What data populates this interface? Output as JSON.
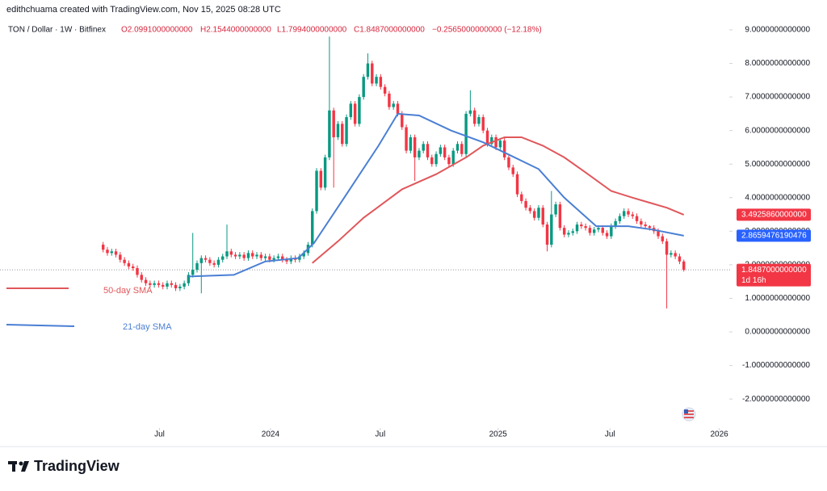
{
  "chart_data": {
    "type": "candlestick",
    "credit": "edithchuama created with TradingView.com, Nov 15, 2025 08:28 UTC",
    "title": "TON / Dollar · 1W · Bitfinex",
    "ohlc_labels": [
      "O2.0991000000000",
      "H2.1544000000000",
      "L1.7994000000000",
      "C1.8487000000000",
      "−0.2565000000000 (−12.18%)"
    ],
    "brand": "TradingView",
    "up_color": "#089981",
    "down_color": "#f23645",
    "open": [
      2.6,
      2.45,
      2.35,
      2.4,
      2.3,
      2.15,
      2.05,
      1.95,
      1.9,
      1.7,
      1.55,
      1.45,
      1.4,
      1.45,
      1.4,
      1.35,
      1.45,
      1.4,
      1.3,
      1.35,
      1.45,
      1.7,
      1.85,
      2.05,
      2.2,
      2.15,
      2.05,
      2.0,
      2.15,
      2.25,
      2.4,
      2.3,
      2.25,
      2.3,
      2.2,
      2.35,
      2.25,
      2.3,
      2.2,
      2.25,
      2.15,
      2.2,
      2.25,
      2.15,
      2.1,
      2.2,
      2.15,
      2.25,
      2.35,
      2.6,
      3.6,
      4.8,
      4.3,
      5.2,
      6.6,
      5.8,
      6.2,
      5.6,
      6.4,
      6.8,
      6.2,
      7.0,
      7.6,
      8.0,
      7.4,
      7.6,
      7.3,
      7.1,
      6.7,
      6.8,
      6.5,
      6.1,
      5.4,
      5.8,
      5.2,
      5.4,
      5.6,
      5.2,
      5.0,
      5.3,
      5.5,
      5.2,
      5.0,
      5.4,
      5.6,
      5.3,
      6.5,
      6.6,
      6.2,
      6.4,
      6.0,
      5.6,
      5.8,
      5.5,
      5.7,
      5.2,
      4.9,
      4.7,
      4.1,
      3.9,
      3.7,
      3.6,
      3.4,
      3.7,
      3.2,
      2.6,
      3.5,
      3.8,
      3.1,
      2.9,
      2.95,
      3.0,
      3.2,
      3.15,
      3.1,
      2.95,
      3.05,
      3.1,
      2.95,
      2.85,
      3.15,
      3.3,
      3.45,
      3.6,
      3.5,
      3.45,
      3.3,
      3.2,
      3.15,
      3.1,
      3.0,
      2.85,
      2.7,
      2.3,
      2.35,
      2.25,
      2.0991
    ],
    "high": [
      2.68,
      2.53,
      2.48,
      2.48,
      2.38,
      2.23,
      2.13,
      2.03,
      1.98,
      1.78,
      1.63,
      1.53,
      1.53,
      1.53,
      1.48,
      1.53,
      1.53,
      1.48,
      1.43,
      1.53,
      1.78,
      2.95,
      2.13,
      2.28,
      2.28,
      2.23,
      2.13,
      2.23,
      2.33,
      3.2,
      2.48,
      2.38,
      2.38,
      2.38,
      2.43,
      2.43,
      2.38,
      2.38,
      2.33,
      2.33,
      2.28,
      2.33,
      2.33,
      2.23,
      2.28,
      2.28,
      2.33,
      2.43,
      2.68,
      3.68,
      4.88,
      4.88,
      5.28,
      8.8,
      6.68,
      6.28,
      6.28,
      6.48,
      6.88,
      6.88,
      7.08,
      7.68,
      8.3,
      8.08,
      7.68,
      7.68,
      7.38,
      7.18,
      6.88,
      6.88,
      6.58,
      6.18,
      5.88,
      5.88,
      5.48,
      5.68,
      5.68,
      5.28,
      5.38,
      5.58,
      5.58,
      5.28,
      5.48,
      5.68,
      5.68,
      6.58,
      7.2,
      6.68,
      6.48,
      6.48,
      6.08,
      5.88,
      5.88,
      5.78,
      5.78,
      5.28,
      4.98,
      4.78,
      4.18,
      3.98,
      3.78,
      3.68,
      3.78,
      3.78,
      3.28,
      4.2,
      3.88,
      3.88,
      3.18,
      3.03,
      3.08,
      3.28,
      3.28,
      3.23,
      3.18,
      3.13,
      3.18,
      3.18,
      3.03,
      3.23,
      3.38,
      3.53,
      3.68,
      3.68,
      3.58,
      3.53,
      3.38,
      3.28,
      3.18,
      3.18,
      3.08,
      2.93,
      2.78,
      2.43,
      2.43,
      2.33,
      2.1544
    ],
    "low": [
      2.37,
      2.27,
      2.27,
      2.22,
      2.07,
      1.97,
      1.87,
      1.82,
      1.62,
      1.47,
      1.37,
      1.32,
      1.32,
      1.32,
      1.27,
      1.27,
      1.32,
      1.22,
      1.22,
      1.27,
      1.37,
      1.62,
      1.77,
      1.15,
      2.07,
      1.97,
      1.92,
      1.92,
      2.07,
      2.17,
      2.22,
      2.17,
      2.17,
      2.12,
      2.12,
      2.17,
      2.17,
      2.12,
      2.12,
      2.07,
      2.07,
      2.12,
      2.07,
      2.02,
      2.02,
      2.07,
      2.07,
      2.17,
      2.27,
      2.52,
      3.52,
      4.22,
      4.22,
      5.12,
      4.3,
      5.72,
      5.52,
      5.52,
      6.32,
      6.12,
      6.12,
      6.92,
      7.52,
      7.32,
      7.32,
      7.22,
      7.02,
      6.62,
      6.62,
      6.42,
      6.02,
      5.32,
      5.32,
      4.5,
      5.12,
      5.32,
      5.12,
      4.92,
      4.92,
      5.22,
      5.12,
      4.92,
      4.92,
      5.32,
      5.22,
      5.22,
      6.42,
      6.12,
      6.12,
      5.92,
      5.52,
      5.52,
      5.42,
      5.42,
      5.12,
      4.82,
      4.62,
      4.02,
      3.82,
      3.62,
      3.52,
      3.32,
      3.32,
      3.12,
      2.4,
      2.52,
      3.42,
      3.02,
      2.82,
      2.82,
      2.87,
      2.92,
      3.07,
      3.02,
      2.87,
      2.87,
      2.97,
      2.87,
      2.77,
      2.77,
      3.07,
      3.22,
      3.37,
      3.42,
      3.37,
      3.22,
      3.12,
      3.07,
      3.02,
      2.92,
      2.77,
      2.62,
      0.7,
      2.22,
      2.17,
      2.02,
      1.7994
    ],
    "close": [
      2.45,
      2.35,
      2.4,
      2.3,
      2.15,
      2.05,
      1.95,
      1.9,
      1.7,
      1.55,
      1.45,
      1.4,
      1.45,
      1.4,
      1.35,
      1.45,
      1.4,
      1.3,
      1.35,
      1.45,
      1.7,
      1.85,
      2.05,
      2.2,
      2.15,
      2.05,
      2.0,
      2.15,
      2.25,
      2.4,
      2.3,
      2.25,
      2.3,
      2.2,
      2.35,
      2.25,
      2.3,
      2.2,
      2.25,
      2.15,
      2.2,
      2.25,
      2.15,
      2.1,
      2.2,
      2.15,
      2.25,
      2.35,
      2.6,
      3.6,
      4.8,
      4.3,
      5.2,
      6.6,
      5.8,
      6.2,
      5.6,
      6.4,
      6.8,
      6.2,
      7.0,
      7.6,
      8.0,
      7.4,
      7.6,
      7.3,
      7.1,
      6.7,
      6.8,
      6.5,
      6.1,
      5.4,
      5.8,
      5.2,
      5.4,
      5.6,
      5.2,
      5.0,
      5.3,
      5.5,
      5.2,
      5.0,
      5.4,
      5.6,
      5.3,
      6.5,
      6.6,
      6.2,
      6.4,
      6.0,
      5.6,
      5.8,
      5.5,
      5.7,
      5.2,
      4.9,
      4.7,
      4.1,
      3.9,
      3.7,
      3.6,
      3.4,
      3.7,
      3.2,
      2.6,
      3.5,
      3.8,
      3.1,
      2.9,
      2.95,
      3.0,
      3.2,
      3.15,
      3.1,
      2.95,
      3.05,
      3.1,
      2.95,
      2.85,
      3.15,
      3.3,
      3.45,
      3.6,
      3.5,
      3.45,
      3.3,
      3.2,
      3.15,
      3.1,
      3.0,
      2.85,
      2.7,
      2.3,
      2.35,
      2.25,
      2.1,
      1.8487
    ],
    "series": [
      {
        "name": "50-day SMA",
        "color": "#e0575b",
        "x": [
          49,
          55,
          61,
          70,
          78,
          85,
          89,
          94,
          98,
          103,
          108,
          113,
          119,
          124,
          128,
          132,
          136
        ],
        "values": [
          2.05,
          2.7,
          3.4,
          4.25,
          4.7,
          5.2,
          5.55,
          5.8,
          5.8,
          5.55,
          5.2,
          4.75,
          4.2,
          4.0,
          3.85,
          3.7,
          3.4926
        ]
      },
      {
        "name": "21-day SMA",
        "color": "#4a7fd4",
        "x": [
          20,
          30.6,
          38,
          45.7,
          49.4,
          57,
          64.5,
          69,
          74,
          81.5,
          89,
          94.7,
          102,
          108,
          115.5,
          123,
          128.7,
          136
        ],
        "values": [
          1.65,
          1.7,
          2.1,
          2.2,
          2.65,
          4.1,
          5.55,
          6.5,
          6.45,
          6.0,
          5.65,
          5.3,
          4.85,
          4.0,
          3.15,
          3.15,
          3.05,
          2.866
        ]
      }
    ],
    "xlim": [
      -24.15,
      145.7
    ],
    "xticks": [
      {
        "value": 13.2,
        "label": "Jul"
      },
      {
        "value": 39.2,
        "label": "2024"
      },
      {
        "value": 64.9,
        "label": "Jul"
      },
      {
        "value": 92.5,
        "label": "2025"
      },
      {
        "value": 118.7,
        "label": "Jul"
      },
      {
        "value": 144.3,
        "label": "2026"
      }
    ],
    "ylim": [
      -2.863,
      9.216
    ],
    "yticks": [
      {
        "value": 9,
        "label": "9.0000000000000"
      },
      {
        "value": 8,
        "label": "8.0000000000000"
      },
      {
        "value": 7,
        "label": "7.0000000000000"
      },
      {
        "value": 6,
        "label": "6.0000000000000"
      },
      {
        "value": 5,
        "label": "5.0000000000000"
      },
      {
        "value": 4,
        "label": "4.0000000000000"
      },
      {
        "value": 3,
        "label": "3.0000000000000"
      },
      {
        "value": 2,
        "label": "2.0000000000000"
      },
      {
        "value": 1,
        "label": "1.0000000000000"
      },
      {
        "value": 0,
        "label": "0.0000000000000"
      },
      {
        "value": -1,
        "label": "-1.0000000000000"
      },
      {
        "value": -2,
        "label": "-2.0000000000000"
      }
    ],
    "grid": false,
    "price_badges": [
      {
        "value": 3.492586,
        "label": "3.4925860000000",
        "color": "#f23645"
      },
      {
        "value": 2.8659476190476,
        "label": "2.8659476190476",
        "color": "#2962ff"
      },
      {
        "value": 1.8487,
        "label": "1.8487000000000",
        "sublabel": "1d 16h",
        "color": "#f23645"
      }
    ]
  }
}
